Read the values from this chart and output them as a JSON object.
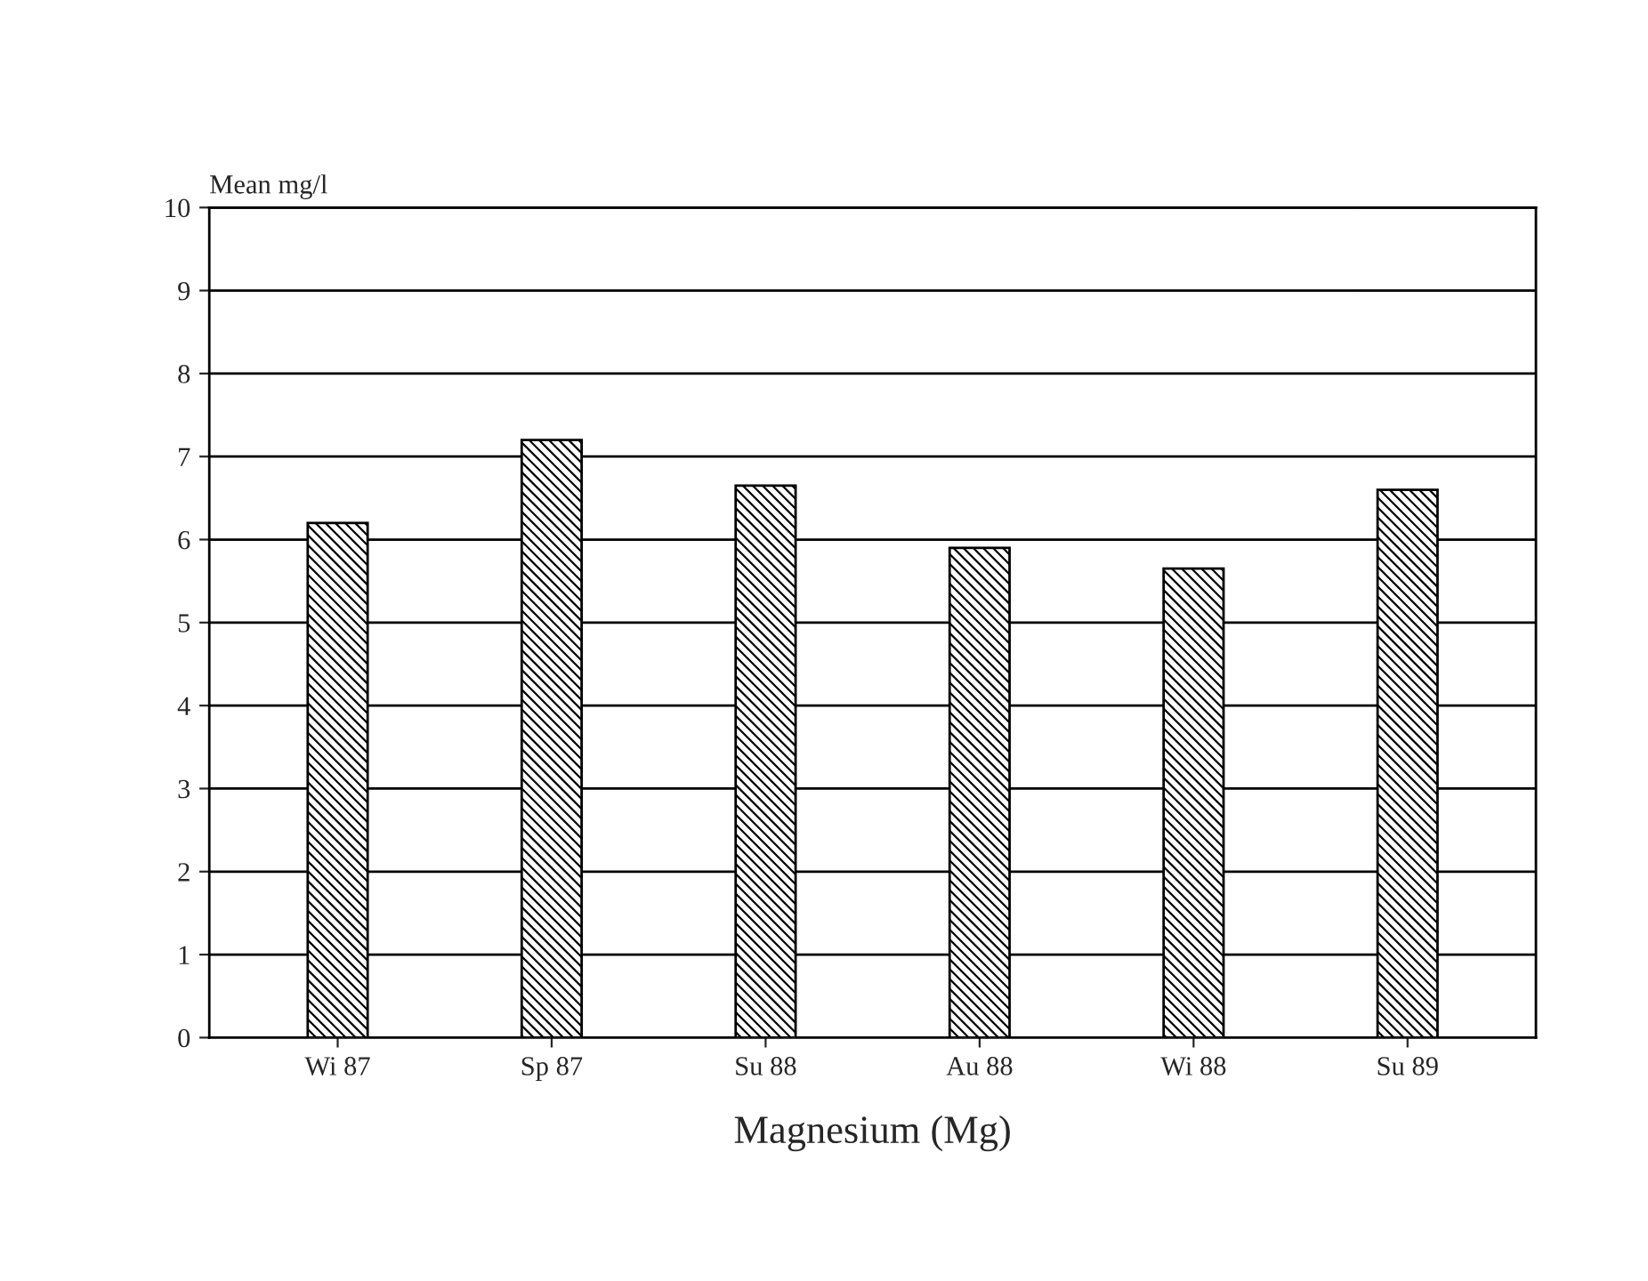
{
  "chart_data": {
    "type": "bar",
    "ylabel": "Mean mg/l",
    "xlabel": "Magnesium (Mg)",
    "categories": [
      "Wi 87",
      "Sp 87",
      "Su 88",
      "Au 88",
      "Wi 88",
      "Su 89"
    ],
    "values": [
      6.2,
      7.2,
      6.65,
      5.9,
      5.65,
      6.6
    ],
    "color": "#000000",
    "ylim": [
      0,
      10
    ],
    "yticks": [
      0,
      1,
      2,
      3,
      4,
      5,
      6,
      7,
      8,
      9,
      10
    ],
    "grid": "y"
  }
}
